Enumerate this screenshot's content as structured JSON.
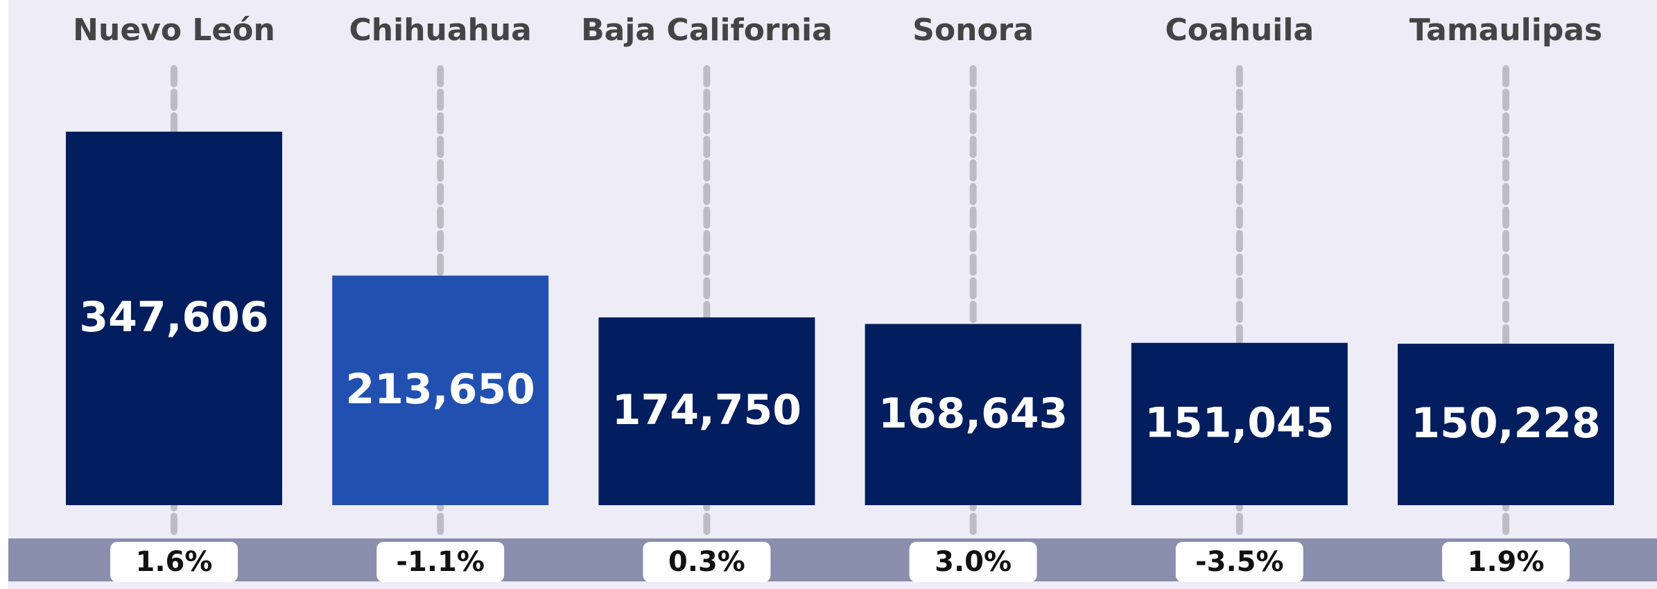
{
  "chart_data": {
    "type": "bar",
    "categories": [
      "Nuevo León",
      "Chihuahua",
      "Baja California",
      "Sonora",
      "Coahuila",
      "Tamaulipas"
    ],
    "values": [
      347606,
      213650,
      174750,
      168643,
      151045,
      150228
    ],
    "value_labels": [
      "347,606",
      "213,650",
      "174,750",
      "168,643",
      "151,045",
      "150,228"
    ],
    "colors": [
      "#021e5e",
      "#2150b0",
      "#021e5e",
      "#021e5e",
      "#021e5e",
      "#021e5e"
    ],
    "changes": [
      1.6,
      -1.1,
      0.3,
      3.0,
      -3.5,
      1.9
    ],
    "change_labels": [
      "1.6%",
      "-1.1%",
      "0.3%",
      "3.0%",
      "-3.5%",
      "1.9%"
    ]
  }
}
